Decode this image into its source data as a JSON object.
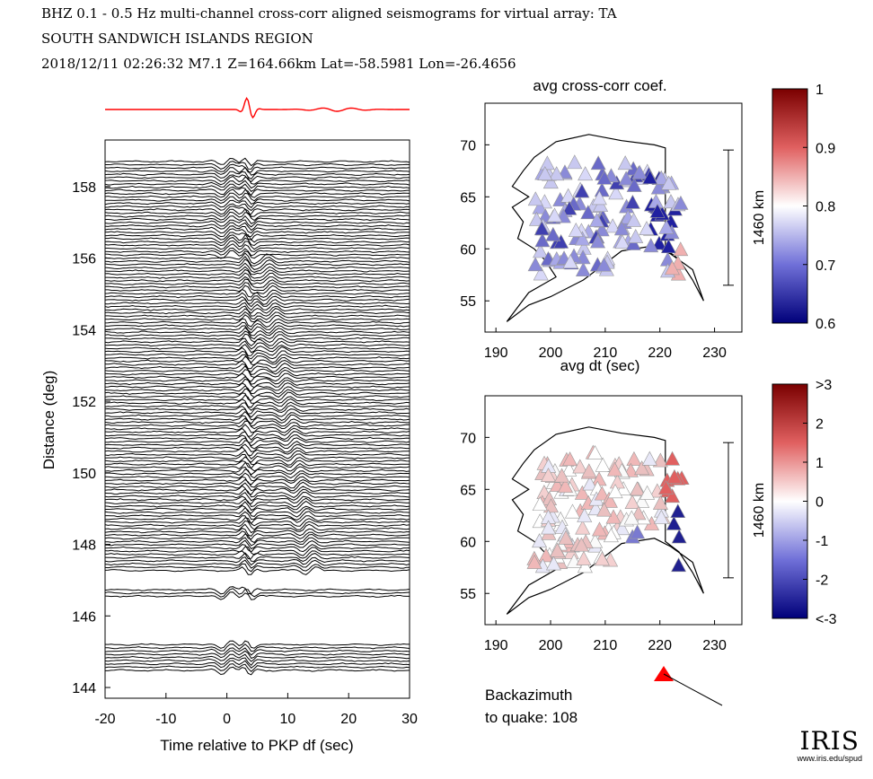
{
  "header": {
    "line1": "BHZ  0.1 - 0.5 Hz  multi-channel cross-corr aligned seismograms for virtual array: TA",
    "line2": "SOUTH SANDWICH ISLANDS REGION",
    "line3": "2018/12/11  02:26:32  M7.1  Z=164.66km Lat=-58.5981 Lon=-26.4656"
  },
  "backazimuth": {
    "label": "Backazimuth",
    "value_label": "to quake:  108",
    "degrees": 108
  },
  "logo": {
    "text": "IRIS",
    "url": "www.iris.edu/spud"
  },
  "colors": {
    "trace": "#000000",
    "stack": "#ff0000",
    "arrow": "#ff0000"
  },
  "chart_data": [
    {
      "type": "line",
      "title": "",
      "xlabel": "Time relative to PKP df (sec)",
      "ylabel": "Distance (deg)",
      "xlim": [
        -20,
        30
      ],
      "ylim": [
        143.7,
        159.3
      ],
      "xticks": [
        -20,
        -10,
        0,
        10,
        20,
        30
      ],
      "yticks": [
        144,
        146,
        148,
        150,
        152,
        154,
        156,
        158
      ],
      "description_series": "seismogram traces offset by epicentral distance, with stacked trace above",
      "arrival_onset_sec": 3
    },
    {
      "type": "scatter",
      "title": "avg cross-corr coef.",
      "xlabel": "",
      "ylabel": "",
      "xlim": [
        188,
        235
      ],
      "ylim": [
        52,
        74
      ],
      "xticks": [
        190,
        200,
        210,
        220,
        230
      ],
      "yticks": [
        55,
        60,
        65,
        70
      ],
      "scale_bar_label": "1460 km",
      "colorbar": {
        "min": 0.6,
        "max": 1.0,
        "ticks": [
          "1",
          "0.9",
          "0.8",
          "0.7",
          "0.6"
        ]
      }
    },
    {
      "type": "scatter",
      "title": "avg dt (sec)",
      "xlabel": "",
      "ylabel": "",
      "xlim": [
        188,
        235
      ],
      "ylim": [
        52,
        74
      ],
      "xticks": [
        190,
        200,
        210,
        220,
        230
      ],
      "yticks": [
        55,
        60,
        65,
        70
      ],
      "scale_bar_label": "1460 km",
      "colorbar": {
        "min": -3,
        "max": 3,
        "ticks": [
          ">3",
          "2",
          "1",
          "0",
          "-1",
          "-2",
          "<-3"
        ]
      }
    }
  ]
}
